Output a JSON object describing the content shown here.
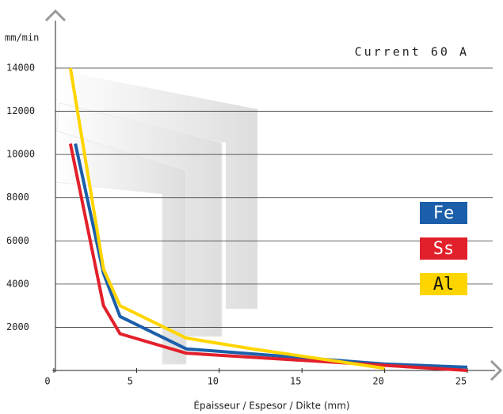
{
  "chart_data": {
    "type": "line",
    "title": "Current 60 A",
    "y_label": "mm/min",
    "x_label": "Épaisseur / Espesor / Dikte (mm)",
    "xlim": [
      0,
      25
    ],
    "xticks": [
      0,
      5,
      10,
      15,
      20,
      25
    ],
    "ylim": [
      0,
      14000
    ],
    "yticks": [
      2000,
      4000,
      6000,
      8000,
      10000,
      12000,
      14000
    ],
    "grid": true,
    "legend": "right",
    "series": [
      {
        "name": "Fe",
        "color": "#1b5fab",
        "x": [
          1.3,
          3,
          4,
          8,
          20,
          25
        ],
        "values": [
          10500,
          4500,
          2500,
          1000,
          300,
          150
        ]
      },
      {
        "name": "Ss",
        "color": "#e2202b",
        "x": [
          1,
          3,
          4,
          8,
          25
        ],
        "values": [
          10500,
          3000,
          1700,
          800,
          0
        ]
      },
      {
        "name": "Al",
        "color": "#ffd500",
        "x": [
          1,
          3,
          4,
          8,
          12,
          20
        ],
        "values": [
          14000,
          4700,
          3000,
          1500,
          1000,
          100
        ]
      }
    ]
  }
}
